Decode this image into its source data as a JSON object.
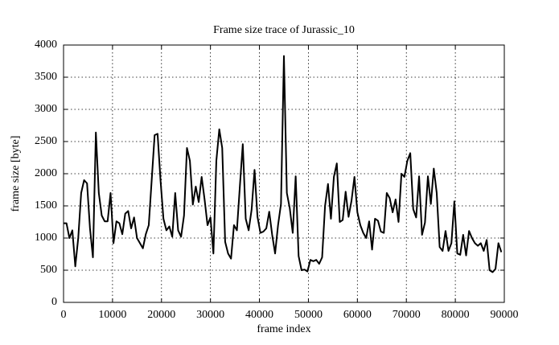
{
  "chart_data": {
    "type": "line",
    "title": "Frame size trace of Jurassic_10",
    "x_label": "frame index",
    "y_label": "frame size [byte]",
    "x": [
      0,
      600,
      1200,
      1800,
      2400,
      3000,
      3600,
      4200,
      4800,
      5400,
      6000,
      6600,
      7200,
      7800,
      8400,
      9000,
      9600,
      10200,
      10800,
      11400,
      12000,
      12600,
      13200,
      13800,
      14400,
      15000,
      15600,
      16200,
      16800,
      17400,
      18000,
      18600,
      19200,
      19800,
      20400,
      21000,
      21600,
      22200,
      22800,
      23400,
      24000,
      24600,
      25200,
      25800,
      26400,
      27000,
      27600,
      28200,
      28800,
      29400,
      30000,
      30600,
      31200,
      31800,
      32400,
      33000,
      33600,
      34200,
      34800,
      35400,
      36000,
      36600,
      37200,
      37800,
      38400,
      39000,
      39600,
      40200,
      40800,
      41400,
      42000,
      42600,
      43200,
      43800,
      44400,
      45000,
      45600,
      46200,
      46800,
      47400,
      48000,
      48600,
      49200,
      49800,
      50400,
      51000,
      51600,
      52200,
      52800,
      53400,
      54000,
      54600,
      55200,
      55800,
      56400,
      57000,
      57600,
      58200,
      58800,
      59400,
      60000,
      60600,
      61200,
      61800,
      62400,
      63000,
      63600,
      64200,
      64800,
      65400,
      66000,
      66600,
      67200,
      67800,
      68400,
      69000,
      69600,
      70200,
      70800,
      71400,
      72000,
      72600,
      73200,
      73800,
      74400,
      75000,
      75600,
      76200,
      76800,
      77400,
      78000,
      78600,
      79200,
      79800,
      80400,
      81000,
      81600,
      82200,
      82800,
      83400,
      84000,
      84600,
      85200,
      85800,
      86400,
      87000,
      87600,
      88200,
      88800,
      89400
    ],
    "series": [
      {
        "name": "frame size",
        "color": "#000000",
        "values": [
          1230,
          1230,
          1000,
          1120,
          560,
          1000,
          1700,
          1900,
          1850,
          1150,
          700,
          2640,
          1700,
          1350,
          1260,
          1260,
          1700,
          920,
          1260,
          1230,
          1060,
          1380,
          1420,
          1150,
          1320,
          1000,
          920,
          840,
          1060,
          1200,
          1900,
          2600,
          2620,
          1900,
          1300,
          1120,
          1180,
          1020,
          1700,
          1120,
          1020,
          1350,
          2400,
          2200,
          1520,
          1800,
          1560,
          1950,
          1600,
          1200,
          1320,
          760,
          2200,
          2690,
          2400,
          940,
          760,
          680,
          1200,
          1120,
          1800,
          2460,
          1300,
          1120,
          1440,
          2060,
          1330,
          1080,
          1100,
          1150,
          1410,
          1050,
          760,
          1200,
          1530,
          3830,
          1700,
          1460,
          1080,
          1960,
          720,
          500,
          510,
          480,
          660,
          640,
          660,
          600,
          700,
          1500,
          1840,
          1300,
          1950,
          2160,
          1250,
          1280,
          1720,
          1330,
          1580,
          1950,
          1400,
          1200,
          1080,
          1000,
          1260,
          820,
          1300,
          1270,
          1100,
          1080,
          1700,
          1620,
          1400,
          1600,
          1250,
          2000,
          1950,
          2200,
          2320,
          1450,
          1320,
          1960,
          1050,
          1240,
          1960,
          1530,
          2080,
          1700,
          860,
          800,
          1110,
          800,
          920,
          1570,
          760,
          740,
          1050,
          730,
          1110,
          1000,
          920,
          880,
          920,
          800,
          970,
          500,
          470,
          520,
          920,
          780
        ]
      }
    ],
    "xlim": [
      0,
      90000
    ],
    "ylim": [
      0,
      4000
    ],
    "xticks": [
      0,
      10000,
      20000,
      30000,
      40000,
      50000,
      60000,
      70000,
      80000,
      90000
    ],
    "yticks": [
      0,
      500,
      1000,
      1500,
      2000,
      2500,
      3000,
      3500,
      4000
    ],
    "grid": true
  }
}
